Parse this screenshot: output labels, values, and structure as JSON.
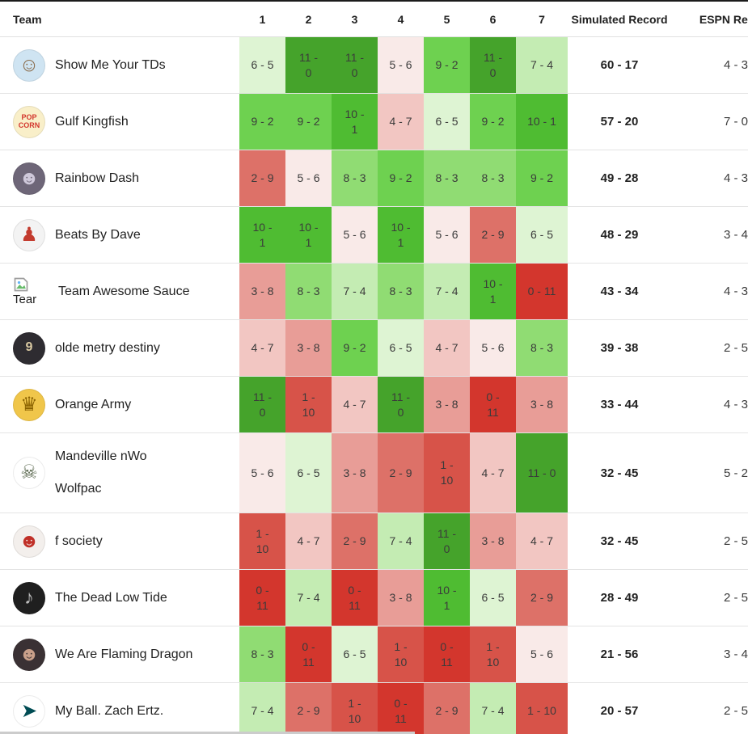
{
  "table": {
    "header": {
      "team": "Team",
      "weeks": [
        "1",
        "2",
        "3",
        "4",
        "5",
        "6",
        "7"
      ],
      "simulated": "Simulated Record",
      "espn": "ESPN Record"
    },
    "record_separator": " - ",
    "win_colors": {
      "0": "#d3362d",
      "1": "#d75349",
      "2": "#dd7168",
      "3": "#e89d97",
      "4": "#f2c6c2",
      "5": "#f9eae8",
      "6": "#def4d3",
      "7": "#c4ecb3",
      "8": "#90dc73",
      "9": "#6ed150",
      "10": "#4fbc32",
      "11": "#45a32b"
    },
    "teams": [
      {
        "name": "Show Me Your TDs",
        "name_lines": [
          "Show Me Your TDs"
        ],
        "avatar": {
          "kind": "glyph",
          "icon": "cartoon-man-avatar",
          "glyph": "☺",
          "bg": "#cfe4f2",
          "fg": "#8a6b4a"
        },
        "weeks": [
          [
            6,
            5
          ],
          [
            11,
            0
          ],
          [
            11,
            0
          ],
          [
            5,
            6
          ],
          [
            9,
            2
          ],
          [
            11,
            0
          ],
          [
            7,
            4
          ]
        ],
        "simulated": "60 - 17",
        "espn": "4 - 3"
      },
      {
        "name": "Gulf Kingfish",
        "name_lines": [
          "Gulf Kingfish"
        ],
        "avatar": {
          "kind": "text",
          "icon": "popcorn-logo-avatar",
          "lines": [
            "POP",
            "CORN"
          ],
          "text_size": "9px",
          "bg": "#f9efc9",
          "fg": "#d3362d"
        },
        "weeks": [
          [
            9,
            2
          ],
          [
            9,
            2
          ],
          [
            10,
            1
          ],
          [
            4,
            7
          ],
          [
            6,
            5
          ],
          [
            9,
            2
          ],
          [
            10,
            1
          ]
        ],
        "simulated": "57 - 20",
        "espn": "7 - 0"
      },
      {
        "name": "Rainbow Dash",
        "name_lines": [
          "Rainbow Dash"
        ],
        "avatar": {
          "kind": "glyph",
          "icon": "anime-character-avatar",
          "glyph": "☻",
          "bg": "#6e6678",
          "fg": "#cfc8da"
        },
        "weeks": [
          [
            2,
            9
          ],
          [
            5,
            6
          ],
          [
            8,
            3
          ],
          [
            9,
            2
          ],
          [
            8,
            3
          ],
          [
            8,
            3
          ],
          [
            9,
            2
          ]
        ],
        "simulated": "49 - 28",
        "espn": "4 - 3"
      },
      {
        "name": "Beats By Dave",
        "name_lines": [
          "Beats By Dave"
        ],
        "avatar": {
          "kind": "glyph",
          "icon": "pixel-player-avatar",
          "glyph": "♟",
          "bg": "#f3f3f3",
          "fg": "#c33b2e"
        },
        "weeks": [
          [
            10,
            1
          ],
          [
            10,
            1
          ],
          [
            5,
            6
          ],
          [
            10,
            1
          ],
          [
            5,
            6
          ],
          [
            2,
            9
          ],
          [
            6,
            5
          ]
        ],
        "simulated": "48 - 29",
        "espn": "3 - 4"
      },
      {
        "name": "Team Awesome Sauce",
        "name_lines": [
          "Team Awesome Sauce"
        ],
        "avatar": {
          "kind": "broken",
          "icon": "broken-image-avatar",
          "caption": "Tear"
        },
        "weeks": [
          [
            3,
            8
          ],
          [
            8,
            3
          ],
          [
            7,
            4
          ],
          [
            8,
            3
          ],
          [
            7,
            4
          ],
          [
            10,
            1
          ],
          [
            0,
            11
          ]
        ],
        "simulated": "43 - 34",
        "espn": "4 - 3"
      },
      {
        "name": "olde metry destiny",
        "name_lines": [
          "olde metry destiny"
        ],
        "avatar": {
          "kind": "text",
          "icon": "jersey-nine-avatar",
          "lines": [
            "9"
          ],
          "text_size": "16px",
          "bg": "#2e2c31",
          "fg": "#d9c9a2"
        },
        "weeks": [
          [
            4,
            7
          ],
          [
            3,
            8
          ],
          [
            9,
            2
          ],
          [
            6,
            5
          ],
          [
            4,
            7
          ],
          [
            5,
            6
          ],
          [
            8,
            3
          ]
        ],
        "simulated": "39 - 38",
        "espn": "2 - 5"
      },
      {
        "name": "Orange Army",
        "name_lines": [
          "Orange Army"
        ],
        "avatar": {
          "kind": "glyph",
          "icon": "royal-crest-avatar",
          "glyph": "♛",
          "bg": "#f0c64a",
          "fg": "#8a6200"
        },
        "weeks": [
          [
            11,
            0
          ],
          [
            1,
            10
          ],
          [
            4,
            7
          ],
          [
            11,
            0
          ],
          [
            3,
            8
          ],
          [
            0,
            11
          ],
          [
            3,
            8
          ]
        ],
        "simulated": "33 - 44",
        "espn": "4 - 3"
      },
      {
        "name": "Mandeville nWo Wolfpac",
        "name_lines": [
          "Mandeville nWo",
          "Wolfpac"
        ],
        "avatar": {
          "kind": "glyph",
          "icon": "skeleton-avatar",
          "glyph": "☠",
          "bg": "#ffffff",
          "fg": "#5d6b52"
        },
        "weeks": [
          [
            5,
            6
          ],
          [
            6,
            5
          ],
          [
            3,
            8
          ],
          [
            2,
            9
          ],
          [
            1,
            10
          ],
          [
            4,
            7
          ],
          [
            11,
            0
          ]
        ],
        "simulated": "32 - 45",
        "espn": "5 - 2"
      },
      {
        "name": "f society",
        "name_lines": [
          "f society"
        ],
        "avatar": {
          "kind": "glyph",
          "icon": "fsociety-mask-avatar",
          "glyph": "☻",
          "bg": "#f3efec",
          "fg": "#c03028"
        },
        "weeks": [
          [
            1,
            10
          ],
          [
            4,
            7
          ],
          [
            2,
            9
          ],
          [
            7,
            4
          ],
          [
            11,
            0
          ],
          [
            3,
            8
          ],
          [
            4,
            7
          ]
        ],
        "simulated": "32 - 45",
        "espn": "2 - 5"
      },
      {
        "name": "The Dead Low Tide",
        "name_lines": [
          "The Dead Low Tide"
        ],
        "avatar": {
          "kind": "glyph",
          "icon": "band-photo-avatar",
          "glyph": "♪",
          "bg": "#1f1f1f",
          "fg": "#bdbdbd"
        },
        "weeks": [
          [
            0,
            11
          ],
          [
            7,
            4
          ],
          [
            0,
            11
          ],
          [
            3,
            8
          ],
          [
            10,
            1
          ],
          [
            6,
            5
          ],
          [
            2,
            9
          ]
        ],
        "simulated": "28 - 49",
        "espn": "2 - 5"
      },
      {
        "name": "We Are Flaming Dragon",
        "name_lines": [
          "We Are Flaming Dragon"
        ],
        "avatar": {
          "kind": "glyph",
          "icon": "person-photo-avatar",
          "glyph": "☻",
          "bg": "#3a3134",
          "fg": "#c9a08a"
        },
        "weeks": [
          [
            8,
            3
          ],
          [
            0,
            11
          ],
          [
            6,
            5
          ],
          [
            1,
            10
          ],
          [
            0,
            11
          ],
          [
            1,
            10
          ],
          [
            5,
            6
          ]
        ],
        "simulated": "21 - 56",
        "espn": "3 - 4"
      },
      {
        "name": "My Ball. Zach Ertz.",
        "name_lines": [
          "My Ball. Zach Ertz."
        ],
        "avatar": {
          "kind": "glyph",
          "icon": "eagles-logo-avatar",
          "glyph": "➤",
          "bg": "#ffffff",
          "fg": "#004c54"
        },
        "weeks": [
          [
            7,
            4
          ],
          [
            2,
            9
          ],
          [
            1,
            10
          ],
          [
            0,
            11
          ],
          [
            2,
            9
          ],
          [
            7,
            4
          ],
          [
            1,
            10
          ]
        ],
        "simulated": "20 - 57",
        "espn": "2 - 5"
      }
    ]
  }
}
